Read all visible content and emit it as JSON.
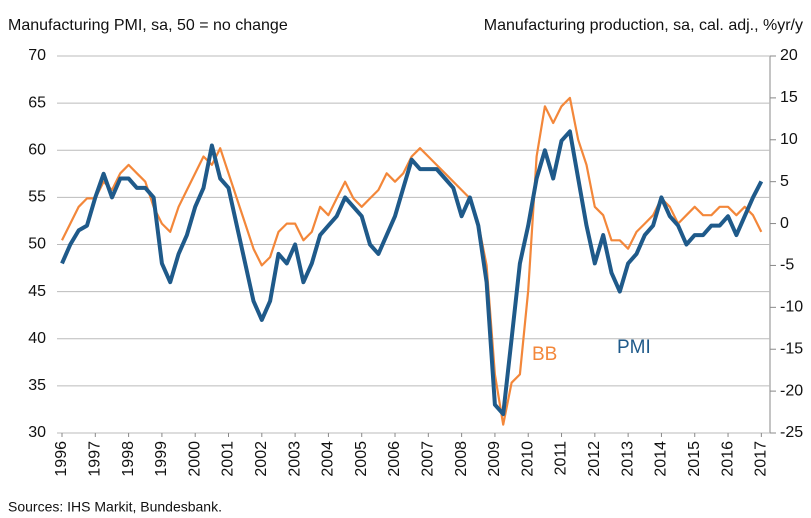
{
  "chart_data": {
    "type": "line",
    "title_left": "Manufacturing PMI, sa, 50 = no change",
    "title_right": "Manufacturing production, sa, cal. adj., %yr/y",
    "source": "Sources: IHS Markit, Bundesbank.",
    "annotations": [
      {
        "text": "BB",
        "series": 1
      },
      {
        "text": "PMI",
        "series": 0
      }
    ],
    "xlim": [
      1996,
      2017.2
    ],
    "xticks": [
      1996,
      1997,
      1998,
      1999,
      2000,
      2001,
      2002,
      2003,
      2004,
      2005,
      2006,
      2007,
      2008,
      2009,
      2010,
      2011,
      2012,
      2013,
      2014,
      2015,
      2016,
      2017
    ],
    "ylim": [
      30,
      70
    ],
    "yticks": [
      30,
      35,
      40,
      45,
      50,
      55,
      60,
      65,
      70
    ],
    "y2lim": [
      -25,
      20
    ],
    "y2ticks": [
      -25,
      -20,
      -15,
      -10,
      -5,
      0,
      5,
      10,
      15,
      20
    ],
    "grid": true,
    "x": [
      1996,
      1996.25,
      1996.5,
      1996.75,
      1997,
      1997.25,
      1997.5,
      1997.75,
      1998,
      1998.25,
      1998.5,
      1998.75,
      1999,
      1999.25,
      1999.5,
      1999.75,
      2000,
      2000.25,
      2000.5,
      2000.75,
      2001,
      2001.25,
      2001.5,
      2001.75,
      2002,
      2002.25,
      2002.5,
      2002.75,
      2003,
      2003.25,
      2003.5,
      2003.75,
      2004,
      2004.25,
      2004.5,
      2004.75,
      2005,
      2005.25,
      2005.5,
      2005.75,
      2006,
      2006.25,
      2006.5,
      2006.75,
      2007,
      2007.25,
      2007.5,
      2007.75,
      2008,
      2008.25,
      2008.5,
      2008.75,
      2009,
      2009.25,
      2009.5,
      2009.75,
      2010,
      2010.25,
      2010.5,
      2010.75,
      2011,
      2011.25,
      2011.5,
      2011.75,
      2012,
      2012.25,
      2012.5,
      2012.75,
      2013,
      2013.25,
      2013.5,
      2013.75,
      2014,
      2014.25,
      2014.5,
      2014.75,
      2015,
      2015.25,
      2015.5,
      2015.75,
      2016,
      2016.25,
      2016.5,
      2016.75,
      2017
    ],
    "series": [
      {
        "name": "PMI",
        "color": "#1f5a8a",
        "axis": "y",
        "values": [
          48,
          50,
          51.5,
          52,
          55,
          57.5,
          55,
          57,
          57,
          56,
          56,
          55,
          48,
          46,
          49,
          51,
          54,
          56,
          60.5,
          57,
          56,
          52,
          48,
          44,
          42,
          44,
          49,
          48,
          50,
          46,
          48,
          51,
          52,
          53,
          55,
          54,
          53,
          50,
          49,
          51,
          53,
          56,
          59,
          58,
          58,
          58,
          57,
          56,
          53,
          55,
          52,
          46,
          33,
          32,
          40,
          48,
          52,
          57,
          60,
          57,
          61,
          62,
          57,
          52,
          48,
          51,
          47,
          45,
          48,
          49,
          51,
          52,
          55,
          53,
          52,
          50,
          51,
          51,
          52,
          52,
          53,
          51,
          53,
          55,
          56.7
        ]
      },
      {
        "name": "BB",
        "color": "#f3873a",
        "axis": "y2",
        "values": [
          -2,
          0,
          2,
          3,
          3,
          5,
          4,
          6,
          7,
          6,
          5,
          2,
          0,
          -1,
          2,
          4,
          6,
          8,
          7,
          9,
          6,
          3,
          0,
          -3,
          -5,
          -4,
          -1,
          0,
          0,
          -2,
          -1,
          2,
          1,
          3,
          5,
          3,
          2,
          3,
          4,
          6,
          5,
          6,
          8,
          9,
          8,
          7,
          6,
          5,
          4,
          3,
          0,
          -5,
          -18,
          -24,
          -19,
          -18,
          -8,
          8,
          14,
          12,
          14,
          15,
          10,
          7,
          2,
          1,
          -2,
          -2,
          -3,
          -1,
          0,
          1,
          3,
          2,
          0,
          1,
          2,
          1,
          1,
          2,
          2,
          1,
          2,
          1,
          -1
        ]
      }
    ]
  }
}
